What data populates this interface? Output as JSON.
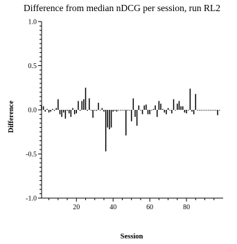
{
  "chart_data": {
    "type": "bar",
    "title": "Difference from median nDCG per session, run RL2",
    "xlabel": "Session",
    "ylabel": "Difference",
    "xlim": [
      1,
      100
    ],
    "ylim": [
      -1.0,
      1.0
    ],
    "x_major_ticks": [
      20,
      40,
      60,
      80
    ],
    "x_tick_labels": [
      "20",
      "40",
      "60",
      "80"
    ],
    "y_major_ticks": [
      -1.0,
      -0.5,
      0.0,
      0.5,
      1.0
    ],
    "y_tick_labels": [
      "-1.0",
      "-0.5",
      "0.0",
      "0.5",
      "1.0"
    ],
    "grid": false,
    "legend": "none",
    "series": [
      {
        "values": [
          0.05,
          0.04,
          -0.02,
          0.01,
          -0.03,
          -0.02,
          0.01,
          -0.01,
          0.02,
          0.12,
          -0.05,
          -0.08,
          -0.03,
          -0.1,
          -0.01,
          -0.04,
          -0.08,
          0.02,
          -0.05,
          -0.04,
          0.1,
          -0.01,
          0.1,
          0.12,
          0.25,
          -0.01,
          0.13,
          0.0,
          -0.09,
          0.0,
          -0.01,
          0.08,
          0.0,
          0.02,
          -0.02,
          -0.47,
          -0.2,
          -0.22,
          -0.2,
          -0.02,
          -0.01,
          -0.02,
          0.0,
          0.0,
          0.0,
          0.0,
          -0.29,
          0.0,
          0.0,
          -0.13,
          0.13,
          -0.08,
          -0.18,
          0.05,
          0.0,
          -0.05,
          0.05,
          0.06,
          -0.05,
          -0.05,
          0.0,
          0.01,
          0.05,
          -0.08,
          0.1,
          0.07,
          0.01,
          -0.03,
          -0.05,
          0.02,
          0.0,
          -0.04,
          0.12,
          0.0,
          0.07,
          0.1,
          0.04,
          0.04,
          -0.03,
          -0.04,
          0.0,
          0.24,
          -0.02,
          -0.05,
          0.18,
          0.0,
          0.0,
          0.0,
          0.0,
          0.0,
          0.0,
          0.0,
          0.0,
          0.0,
          0.0,
          0.0,
          -0.06,
          0.0
        ]
      }
    ]
  }
}
